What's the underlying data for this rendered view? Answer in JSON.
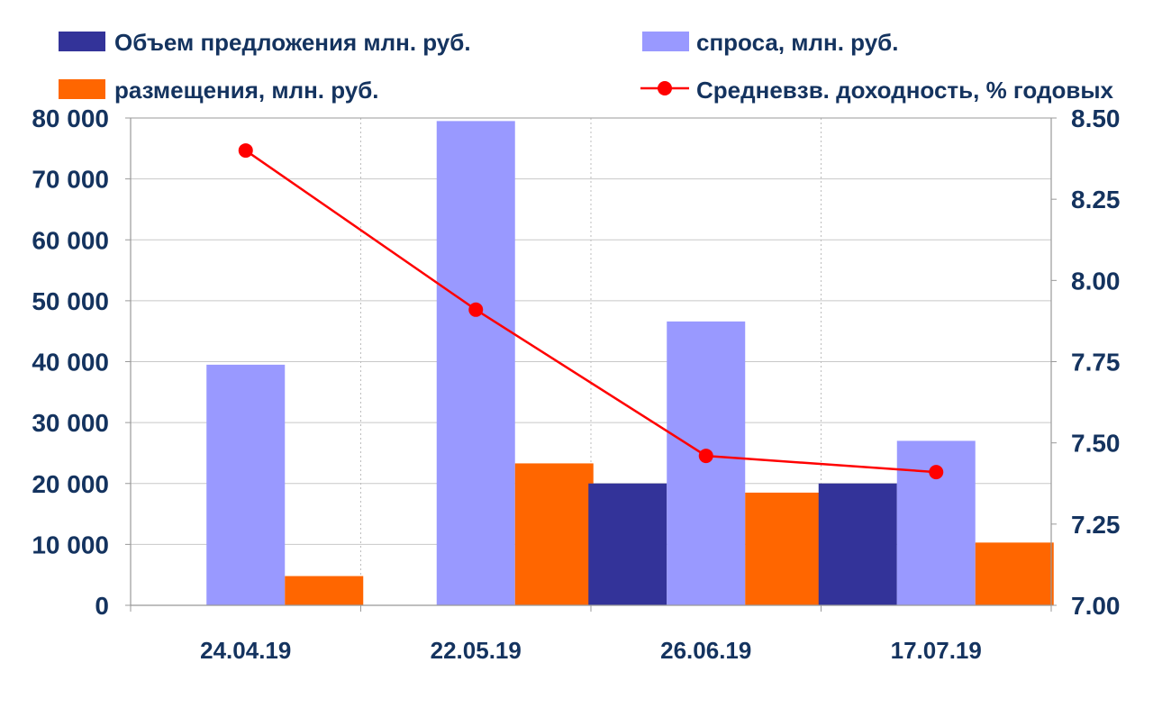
{
  "chart_data": {
    "type": "bar",
    "categories": [
      "24.04.19",
      "22.05.19",
      "26.06.19",
      "17.07.19"
    ],
    "series": [
      {
        "name": "Объем предложения млн. руб.",
        "kind": "bar",
        "axis": "left",
        "color": "#333399",
        "values": [
          0,
          0,
          20000,
          20000
        ]
      },
      {
        "name": "спроса, млн. руб.",
        "kind": "bar",
        "axis": "left",
        "color": "#9999ff",
        "values": [
          39500,
          79500,
          46600,
          27000
        ]
      },
      {
        "name": "размещения, млн. руб.",
        "kind": "bar",
        "axis": "left",
        "color": "#ff6600",
        "values": [
          4800,
          23300,
          18500,
          10300
        ]
      },
      {
        "name": "Средневзв. доходность, % годовых",
        "kind": "line",
        "axis": "right",
        "color": "#ff0000",
        "values": [
          8.4,
          7.91,
          7.46,
          7.41
        ]
      }
    ],
    "ylim": [
      0,
      80000
    ],
    "y2lim": [
      7.0,
      8.5
    ],
    "y_ticks": [
      "0",
      "10 000",
      "20 000",
      "30 000",
      "40 000",
      "50 000",
      "60 000",
      "70 000",
      "80 000"
    ],
    "y_tick_values": [
      0,
      10000,
      20000,
      30000,
      40000,
      50000,
      60000,
      70000,
      80000
    ],
    "y2_ticks": [
      "7.00",
      "7.25",
      "7.50",
      "7.75",
      "8.00",
      "8.25",
      "8.50"
    ],
    "y2_tick_values": [
      7.0,
      7.25,
      7.5,
      7.75,
      8.0,
      8.25,
      8.5
    ],
    "grid": true,
    "legend_position": "top"
  }
}
